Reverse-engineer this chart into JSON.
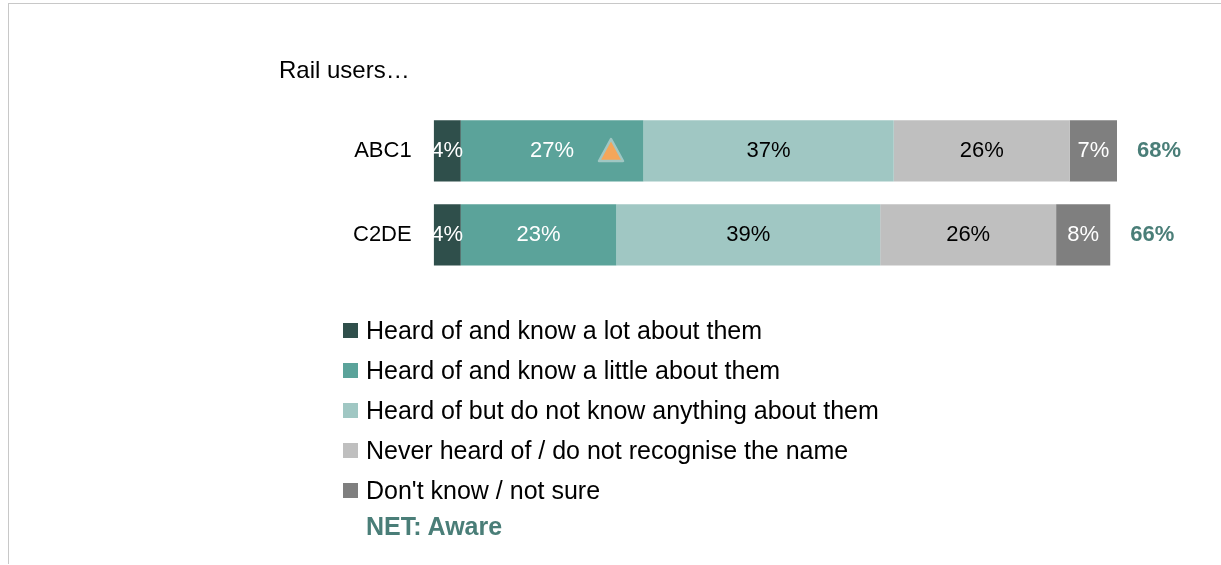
{
  "chart_data": {
    "type": "bar",
    "orientation": "horizontal",
    "stacked": true,
    "title": "Rail users…",
    "categories": [
      "ABC1",
      "C2DE"
    ],
    "series": [
      {
        "name": "Heard of and know a lot about them",
        "color": "#2f4f4b",
        "values": [
          4,
          4
        ],
        "value_labels": [
          "4%",
          "4%"
        ]
      },
      {
        "name": "Heard of and know a little about them",
        "color": "#5ba39a",
        "values": [
          27,
          23
        ],
        "value_labels": [
          "27%",
          "23%"
        ]
      },
      {
        "name": "Heard of but do not know anything about them",
        "color": "#a0c7c3",
        "values": [
          37,
          39
        ],
        "value_labels": [
          "37%",
          "39%"
        ]
      },
      {
        "name": "Never heard of / do not recognise the name",
        "color": "#bfbfbf",
        "values": [
          26,
          26
        ],
        "value_labels": [
          "26%",
          "26%"
        ]
      },
      {
        "name": "Don't know / not sure",
        "color": "#7f7f7f",
        "values": [
          7,
          8
        ],
        "value_labels": [
          "7%",
          "8%"
        ]
      }
    ],
    "annotations": [
      "68%",
      "66%",
      "NET: Aware"
    ],
    "legend": "bottom"
  }
}
